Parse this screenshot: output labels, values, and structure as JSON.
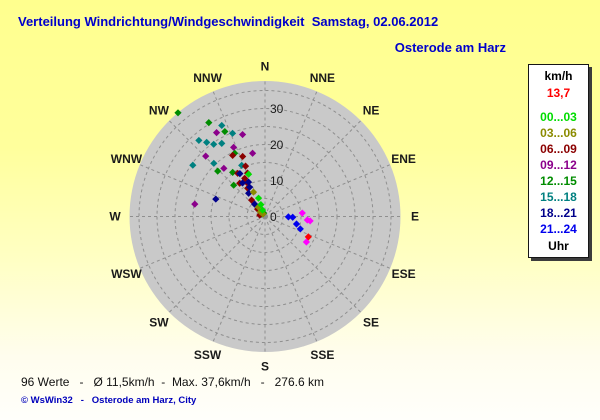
{
  "header": {
    "title": "Verteilung Windrichtung/Windgeschwindigkeit  Samstag, 02.06.2012",
    "station": "Osterode am Harz"
  },
  "legend": {
    "unit": "km/h",
    "current_value": "13,7",
    "current_value_color": "#ff0000",
    "buckets": [
      {
        "label": "00...03",
        "color": "lime"
      },
      {
        "label": "03...06",
        "color": "olive"
      },
      {
        "label": "06...09",
        "color": "maroon"
      },
      {
        "label": "09...12",
        "color": "purple"
      },
      {
        "label": "12...15",
        "color": "green"
      },
      {
        "label": "15...18",
        "color": "teal"
      },
      {
        "label": "18...21",
        "color": "navy"
      },
      {
        "label": "21...24",
        "color": "blue"
      }
    ],
    "footer": "Uhr"
  },
  "footer": {
    "stats": "96 Werte   -   Ø 11,5km/h  -  Max. 37,6km/h   -   276.6 km",
    "copyright": "© WsWin32   -   Osterode am Harz, City"
  },
  "layout_colors": {
    "background_top": "#ffff8e",
    "background_bottom": "#ffffff",
    "disc": "#c9c9c9",
    "grid": "#8f8f8f",
    "label": "#1a1a1a",
    "title_blue": "#0000cc"
  },
  "chart_data": {
    "type": "scatter",
    "subtype": "polar-windrose",
    "title": "Verteilung Windrichtung/Windgeschwindigkeit",
    "date": "Samstag, 02.06.2012",
    "station": "Osterode am Harz",
    "radial_unit": "km/h",
    "radial_ticks": [
      0,
      10,
      20,
      30
    ],
    "radial_rings_kmh": [
      5,
      10,
      15,
      20,
      25,
      30,
      35
    ],
    "radial_max_kmh": 37.5,
    "direction_labels": [
      "N",
      "NNE",
      "NE",
      "ENE",
      "E",
      "ESE",
      "SE",
      "SSE",
      "S",
      "SSW",
      "SW",
      "WSW",
      "W",
      "WNW",
      "NW",
      "NNW"
    ],
    "grid": "dashed",
    "legend_position": "right",
    "stats": {
      "count_label": "96 Werte",
      "mean_kmh": "11,5",
      "max_kmh": "37,6",
      "distance_km": "276.6"
    },
    "palette": {
      "lime": "#00dd00",
      "olive": "#8b8b00",
      "maroon": "#8b0000",
      "purple": "#8b008b",
      "green": "#008c00",
      "teal": "#008080",
      "navy": "#00008b",
      "blue": "#0000ee",
      "magenta": "#ff00ff",
      "red": "#ff0000"
    },
    "points": [
      {
        "a": 320.0,
        "s": 37.6,
        "c": "green",
        "p": "12...15"
      },
      {
        "a": 329.1,
        "s": 30.4,
        "c": "green",
        "p": "12...15"
      },
      {
        "a": 334.7,
        "s": 26.1,
        "c": "green",
        "p": "12...15"
      },
      {
        "a": 334.4,
        "s": 19.5,
        "c": "green",
        "p": "12...15"
      },
      {
        "a": 313.8,
        "s": 18.2,
        "c": "green",
        "p": "12...15"
      },
      {
        "a": 323.8,
        "s": 15.2,
        "c": "green",
        "p": "12...15"
      },
      {
        "a": 315.0,
        "s": 12.3,
        "c": "green",
        "p": "12...15"
      },
      {
        "a": 339.0,
        "s": 1.0,
        "c": "green",
        "p": "12...15"
      },
      {
        "a": 334.6,
        "s": 28.0,
        "c": "teal",
        "p": "15...18"
      },
      {
        "a": 338.7,
        "s": 24.8,
        "c": "teal",
        "p": "15...18"
      },
      {
        "a": 319.0,
        "s": 28.0,
        "c": "teal",
        "p": "15...18"
      },
      {
        "a": 321.8,
        "s": 26.2,
        "c": "teal",
        "p": "15...18"
      },
      {
        "a": 324.6,
        "s": 24.6,
        "c": "teal",
        "p": "15...18"
      },
      {
        "a": 329.4,
        "s": 23.6,
        "c": "teal",
        "p": "15...18"
      },
      {
        "a": 305.4,
        "s": 24.6,
        "c": "teal",
        "p": "15...18"
      },
      {
        "a": 316.1,
        "s": 20.5,
        "c": "teal",
        "p": "15...18"
      },
      {
        "a": 335.5,
        "s": 15.6,
        "c": "teal",
        "p": "15...18"
      },
      {
        "a": 300.0,
        "s": 1.2,
        "c": "teal",
        "p": "15...18"
      },
      {
        "a": 330.0,
        "s": 26.9,
        "c": "purple",
        "p": "09...12"
      },
      {
        "a": 344.7,
        "s": 23.6,
        "c": "purple",
        "p": "09...12"
      },
      {
        "a": 335.6,
        "s": 21.1,
        "c": "purple",
        "p": "09...12"
      },
      {
        "a": 315.5,
        "s": 23.5,
        "c": "purple",
        "p": "09...12"
      },
      {
        "a": 319.5,
        "s": 17.6,
        "c": "purple",
        "p": "09...12"
      },
      {
        "a": 348.9,
        "s": 17.9,
        "c": "purple",
        "p": "09...12"
      },
      {
        "a": 280.0,
        "s": 19.8,
        "c": "purple",
        "p": "09...12"
      },
      {
        "a": 339.6,
        "s": 17.8,
        "c": "maroon",
        "p": "06...09"
      },
      {
        "a": 332.1,
        "s": 19.2,
        "c": "maroon",
        "p": "06...09"
      },
      {
        "a": 338.9,
        "s": 15.0,
        "c": "maroon",
        "p": "06...09"
      },
      {
        "a": 338.1,
        "s": 13.0,
        "c": "maroon",
        "p": "06...09"
      },
      {
        "a": 327.7,
        "s": 14.2,
        "c": "maroon",
        "p": "06...09"
      },
      {
        "a": 332.0,
        "s": 12.0,
        "c": "maroon",
        "p": "06...09"
      },
      {
        "a": 322.7,
        "s": 11.6,
        "c": "maroon",
        "p": "06...09"
      },
      {
        "a": 331.8,
        "s": 10.8,
        "c": "maroon",
        "p": "06...09"
      },
      {
        "a": 328.5,
        "s": 9.2,
        "c": "maroon",
        "p": "06...09"
      },
      {
        "a": 320.7,
        "s": 5.9,
        "c": "maroon",
        "p": "06...09"
      },
      {
        "a": 315.0,
        "s": 2.9,
        "c": "maroon",
        "p": "06...09"
      },
      {
        "a": 285.0,
        "s": 1.5,
        "c": "maroon",
        "p": "06...09"
      },
      {
        "a": 289.5,
        "s": 14.5,
        "c": "navy",
        "p": "18...21"
      },
      {
        "a": 329.6,
        "s": 13.8,
        "c": "navy",
        "p": "18...21"
      },
      {
        "a": 326.1,
        "s": 11.2,
        "c": "navy",
        "p": "18...21"
      },
      {
        "a": 334.4,
        "s": 10.6,
        "c": "navy",
        "p": "18...21"
      },
      {
        "a": 324.9,
        "s": 7.9,
        "c": "navy",
        "p": "18...21"
      },
      {
        "a": 332.3,
        "s": 9.2,
        "c": "navy",
        "p": "18...21"
      },
      {
        "a": 320.0,
        "s": 4.5,
        "c": "navy",
        "p": "18...21"
      },
      {
        "a": 334.8,
        "s": 7.5,
        "c": "olive",
        "p": "03...06"
      },
      {
        "a": 325.0,
        "s": 3.2,
        "c": "olive",
        "p": "03...06"
      },
      {
        "a": 315.0,
        "s": 1.8,
        "c": "olive",
        "p": "03...06"
      },
      {
        "a": 320.0,
        "s": 0.9,
        "c": "olive",
        "p": "03...06"
      },
      {
        "a": 338.8,
        "s": 12.6,
        "c": "lime",
        "p": "00...03"
      },
      {
        "a": 340.6,
        "s": 5.4,
        "c": "lime",
        "p": "00...03"
      },
      {
        "a": 341.0,
        "s": 3.5,
        "c": "lime",
        "p": "00...03"
      },
      {
        "a": 339.0,
        "s": 1.9,
        "c": "lime",
        "p": "00...03"
      },
      {
        "a": 91.0,
        "s": 6.5,
        "c": "blue",
        "p": "21...24"
      },
      {
        "a": 91.5,
        "s": 7.7,
        "c": "blue",
        "p": "21...24"
      },
      {
        "a": 103.4,
        "s": 9.0,
        "c": "blue",
        "p": "21...24"
      },
      {
        "a": 109.4,
        "s": 10.4,
        "c": "blue",
        "p": "21...24"
      },
      {
        "a": 84.7,
        "s": 10.4,
        "c": "magenta",
        "p": ""
      },
      {
        "a": 94.7,
        "s": 11.8,
        "c": "magenta",
        "p": ""
      },
      {
        "a": 95.6,
        "s": 12.6,
        "c": "magenta",
        "p": ""
      },
      {
        "a": 121.6,
        "s": 13.5,
        "c": "magenta",
        "p": ""
      },
      {
        "a": 115.2,
        "s": 13.3,
        "c": "red",
        "p": ""
      }
    ]
  }
}
